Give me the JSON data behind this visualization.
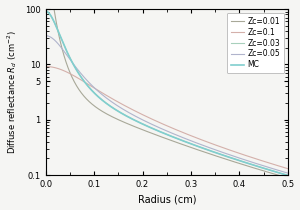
{
  "title": "",
  "xlabel": "Radius (cm)",
  "ylabel": "Diffuse reflectance $R_d$ (cm$^{-2}$)",
  "xlim": [
    0,
    0.5
  ],
  "ylim_log": [
    0.1,
    100
  ],
  "legend_labels": [
    "Zc=0.01",
    "Zc=0.1",
    "Zc=0.03",
    "Zc=0.05",
    "MC"
  ],
  "line_colors": [
    "#a8a898",
    "#d4b0aa",
    "#a8d0bc",
    "#b0b4cc",
    "#80cece"
  ],
  "line_widths": [
    0.8,
    0.8,
    0.8,
    0.8,
    1.2
  ],
  "mu_a": 0.1,
  "mu_s_prime": 10.0,
  "n": 1.4,
  "zc_values": [
    0.01,
    0.1,
    0.03,
    0.05
  ],
  "num_points": 500,
  "bg_color": "#f5f5f3",
  "yticks": [
    0.1,
    1,
    5,
    10,
    100
  ],
  "ytick_labels": [
    "0.1",
    "1",
    "5",
    "10",
    "100"
  ]
}
